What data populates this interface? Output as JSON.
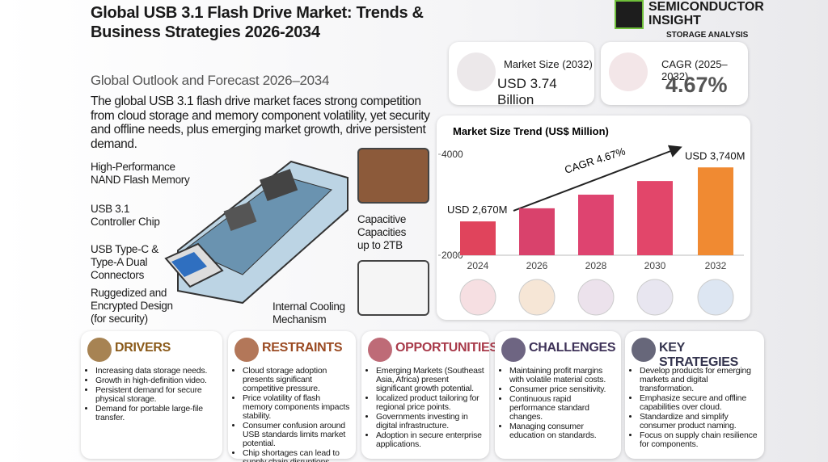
{
  "header": {
    "title": "Global USB 3.1 Flash Drive Market: Trends & Business Strategies 2026-2034",
    "subtitle": "Global Outlook and Forecast 2026–2034",
    "description": "The global USB 3.1 flash drive market faces strong competition from cloud storage and memory component volatility, yet security and offline needs, plus emerging market growth, drive persistent demand."
  },
  "logo": {
    "name": "SEMICONDUCTOR INSIGHT",
    "tagline": "STORAGE ANALYSIS"
  },
  "stats": [
    {
      "label": "Market Size (2032)",
      "value": "USD 3.74 Billion"
    },
    {
      "label": "CAGR (2025–2032)",
      "value": "4.67%"
    }
  ],
  "features": [
    "High-Performance NAND Flash Memory",
    "USB 3.1 Controller Chip",
    "USB Type-C & Type-A Dual Connectors",
    "Ruggedized and Encrypted Design (for security)",
    "Capacitive Capacities up to 2TB",
    "Internal Cooling Mechanism"
  ],
  "chart_data": {
    "type": "bar",
    "title": "Market Size Trend (US$ Million)",
    "categories": [
      "2024",
      "2026",
      "2028",
      "2030",
      "2032"
    ],
    "values": [
      2670,
      2930,
      3200,
      3470,
      3740
    ],
    "value_labels": [
      "USD 2,670M",
      null,
      null,
      null,
      "USD 3,740M"
    ],
    "colors": [
      "#e0445c",
      "#d9426c",
      "#de4470",
      "#e2466a",
      "#f08a32"
    ],
    "annotation": "CAGR 4.67%",
    "ylim": [
      2000,
      4000
    ],
    "yticks": [
      2000,
      4000
    ],
    "grid": false
  },
  "sections": [
    {
      "title": "DRIVERS",
      "color": "#8a5a1a",
      "items": [
        "Increasing data storage needs.",
        "Growth in high-definition video.",
        "Persistent demand for secure physical storage.",
        "Demand for portable large-file transfer."
      ]
    },
    {
      "title": "RESTRAINTS",
      "color": "#9a4a22",
      "items": [
        "Cloud storage adoption presents significant competitive pressure.",
        "Price volatility of flash memory components impacts stability.",
        "Consumer confusion around USB standards limits market potential.",
        "Chip shortages can lead to supply chain disruptions."
      ]
    },
    {
      "title": "OPPORTUNITIES",
      "color": "#a83a4a",
      "items": [
        "Emerging Markets (Southeast Asia, Africa) present significant growth potential.",
        "localized product tailoring for regional price points.",
        "Governments investing in digital infrastructure.",
        "Adoption in secure enterprise applications."
      ]
    },
    {
      "title": "CHALLENGES",
      "color": "#3e3258",
      "items": [
        "Maintaining profit margins with volatile material costs.",
        "Consumer price sensitivity.",
        "Continuous rapid performance standard changes.",
        "Managing consumer education on standards."
      ]
    },
    {
      "title": "KEY STRATEGIES",
      "color": "#34344e",
      "items": [
        "Develop products for emerging markets and digital transformation.",
        "Emphasize secure and offline capabilities over cloud.",
        "Standardize and simplify consumer product naming.",
        "Focus on supply chain resilience for components."
      ]
    }
  ]
}
